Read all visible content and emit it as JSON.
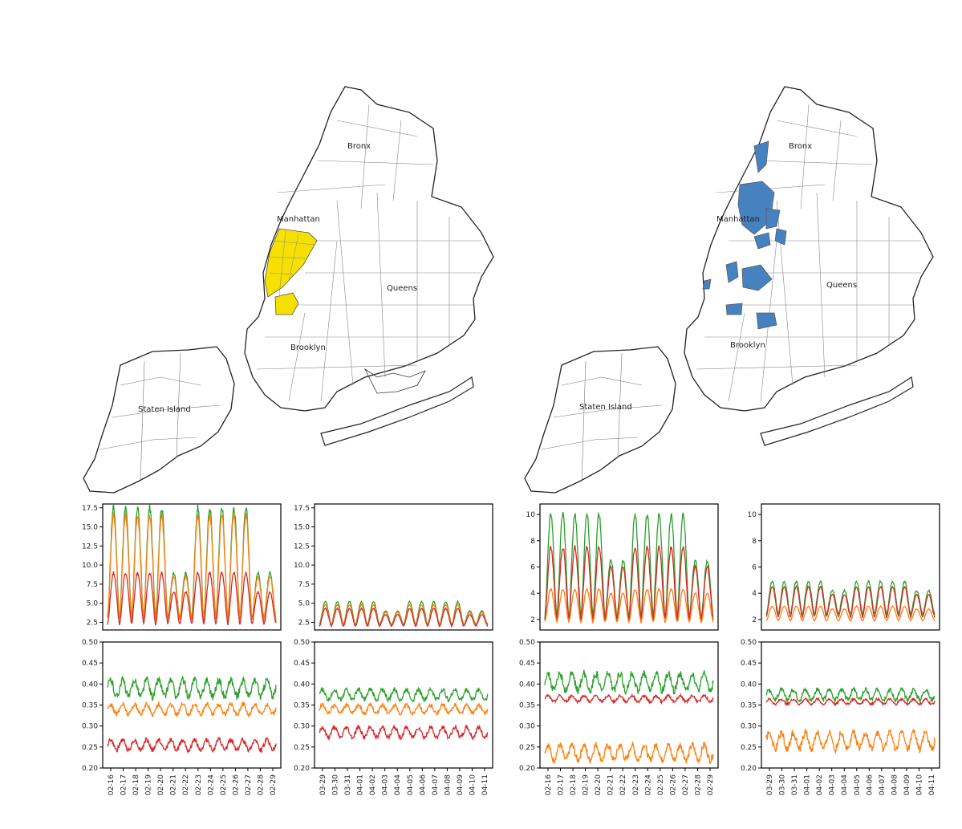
{
  "colors": {
    "green": "#2ca02c",
    "orange": "#ff7f0e",
    "red": "#d62728",
    "yellow": "#f5e000",
    "blue": "#4682c0"
  },
  "maps": [
    {
      "highlight": "yellow",
      "labels": {
        "bronx": "Bronx",
        "manhattan": "Manhattan",
        "queens": "Queens",
        "brooklyn": "Brooklyn",
        "staten": "Staten Island"
      }
    },
    {
      "highlight": "blue",
      "labels": {
        "bronx": "Bronx",
        "manhattan": "Manhattan",
        "queens": "Queens",
        "brooklyn": "Brooklyn",
        "staten": "Staten Island"
      }
    }
  ],
  "chart_data": [
    {
      "type": "line",
      "panel": "left-top-a",
      "ylim": [
        1.5,
        18
      ],
      "yticks": [
        "2.5",
        "5.0",
        "7.5",
        "10.0",
        "12.5",
        "15.0",
        "17.5"
      ],
      "pattern": "weekday-peaks",
      "days": 14,
      "series": [
        {
          "color": "green",
          "base": 3.0,
          "peak_weekday": 17.5,
          "peak_weekend": 9.0
        },
        {
          "color": "orange",
          "base": 2.8,
          "peak_weekday": 16.5,
          "peak_weekend": 8.5
        },
        {
          "color": "red",
          "base": 2.3,
          "peak_weekday": 9.0,
          "peak_weekend": 6.5
        }
      ]
    },
    {
      "type": "line",
      "panel": "left-top-b",
      "ylim": [
        1.5,
        18
      ],
      "yticks": [
        "2.5",
        "5.0",
        "7.5",
        "10.0",
        "12.5",
        "15.0",
        "17.5"
      ],
      "pattern": "weekday-peaks",
      "days": 14,
      "series": [
        {
          "color": "green",
          "base": 2.2,
          "peak_weekday": 5.2,
          "peak_weekend": 4.0
        },
        {
          "color": "orange",
          "base": 2.1,
          "peak_weekday": 4.8,
          "peak_weekend": 3.8
        },
        {
          "color": "red",
          "base": 2.0,
          "peak_weekday": 4.3,
          "peak_weekend": 3.5
        }
      ]
    },
    {
      "type": "line",
      "panel": "right-top-a",
      "ylim": [
        1.2,
        10.8
      ],
      "yticks": [
        "2",
        "4",
        "6",
        "8",
        "10"
      ],
      "pattern": "weekday-peaks",
      "days": 14,
      "series": [
        {
          "color": "green",
          "base": 2.2,
          "peak_weekday": 10.0,
          "peak_weekend": 6.5
        },
        {
          "color": "red",
          "base": 2.0,
          "peak_weekday": 7.5,
          "peak_weekend": 6.0
        },
        {
          "color": "orange",
          "base": 1.8,
          "peak_weekday": 4.3,
          "peak_weekend": 4.0
        }
      ]
    },
    {
      "type": "line",
      "panel": "right-top-b",
      "ylim": [
        1.2,
        10.8
      ],
      "yticks": [
        "2",
        "4",
        "6",
        "8",
        "10"
      ],
      "pattern": "weekday-peaks",
      "days": 14,
      "series": [
        {
          "color": "green",
          "base": 2.4,
          "peak_weekday": 4.9,
          "peak_weekend": 4.2
        },
        {
          "color": "red",
          "base": 2.2,
          "peak_weekday": 4.5,
          "peak_weekend": 3.9
        },
        {
          "color": "orange",
          "base": 1.9,
          "peak_weekday": 3.0,
          "peak_weekend": 2.8
        }
      ]
    },
    {
      "type": "line",
      "panel": "left-bottom-a",
      "ylim": [
        0.2,
        0.5
      ],
      "yticks": [
        "0.20",
        "0.25",
        "0.30",
        "0.35",
        "0.40",
        "0.45",
        "0.50"
      ],
      "xticks": [
        "02-16",
        "02-17",
        "02-18",
        "02-19",
        "02-20",
        "02-21",
        "02-22",
        "02-23",
        "02-24",
        "02-25",
        "02-26",
        "02-27",
        "02-28",
        "02-29"
      ],
      "pattern": "daily",
      "days": 14,
      "series": [
        {
          "color": "green",
          "mean": 0.39,
          "amp": 0.02
        },
        {
          "color": "orange",
          "mean": 0.34,
          "amp": 0.012
        },
        {
          "color": "red",
          "mean": 0.255,
          "amp": 0.012
        }
      ]
    },
    {
      "type": "line",
      "panel": "left-bottom-b",
      "ylim": [
        0.2,
        0.5
      ],
      "yticks": [
        "0.20",
        "0.25",
        "0.30",
        "0.35",
        "0.40",
        "0.45",
        "0.50"
      ],
      "xticks": [
        "03-29",
        "03-30",
        "03-31",
        "04-01",
        "04-02",
        "04-03",
        "04-04",
        "04-05",
        "04-06",
        "04-07",
        "04-08",
        "04-09",
        "04-10",
        "04-11"
      ],
      "pattern": "daily",
      "days": 14,
      "series": [
        {
          "color": "green",
          "mean": 0.375,
          "amp": 0.012
        },
        {
          "color": "orange",
          "mean": 0.34,
          "amp": 0.01
        },
        {
          "color": "red",
          "mean": 0.285,
          "amp": 0.012
        }
      ]
    },
    {
      "type": "line",
      "panel": "right-bottom-a",
      "ylim": [
        0.2,
        0.5
      ],
      "yticks": [
        "0.20",
        "0.25",
        "0.30",
        "0.35",
        "0.40",
        "0.45",
        "0.50"
      ],
      "xticks": [
        "02-16",
        "02-17",
        "02-18",
        "02-19",
        "02-20",
        "02-21",
        "02-22",
        "02-23",
        "02-24",
        "02-25",
        "02-26",
        "02-27",
        "02-28",
        "02-29"
      ],
      "pattern": "daily",
      "days": 14,
      "series": [
        {
          "color": "green",
          "mean": 0.405,
          "amp": 0.02
        },
        {
          "color": "red",
          "mean": 0.365,
          "amp": 0.007
        },
        {
          "color": "orange",
          "mean": 0.237,
          "amp": 0.018
        }
      ]
    },
    {
      "type": "line",
      "panel": "right-bottom-b",
      "ylim": [
        0.2,
        0.5
      ],
      "yticks": [
        "0.20",
        "0.25",
        "0.30",
        "0.35",
        "0.40",
        "0.45",
        "0.50"
      ],
      "xticks": [
        "03-29",
        "03-30",
        "03-31",
        "04-01",
        "04-02",
        "04-03",
        "04-04",
        "04-05",
        "04-06",
        "04-07",
        "04-08",
        "04-09",
        "04-10",
        "04-11"
      ],
      "pattern": "daily",
      "days": 14,
      "series": [
        {
          "color": "green",
          "mean": 0.375,
          "amp": 0.012
        },
        {
          "color": "red",
          "mean": 0.358,
          "amp": 0.006
        },
        {
          "color": "orange",
          "mean": 0.265,
          "amp": 0.02
        }
      ]
    }
  ]
}
